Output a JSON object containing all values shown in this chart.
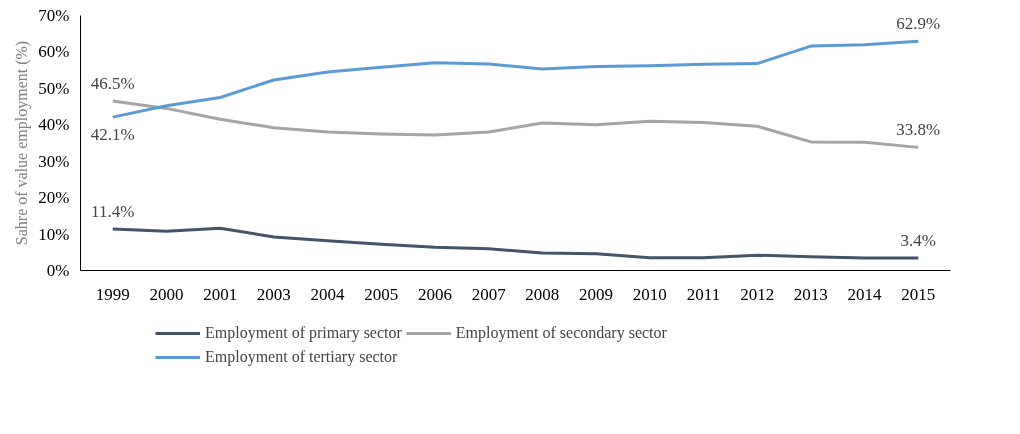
{
  "chart_data": {
    "type": "line",
    "ylabel": "Sahre of value employment (%)",
    "categories": [
      "1999",
      "2000",
      "2001",
      "2003",
      "2004",
      "2005",
      "2006",
      "2007",
      "2008",
      "2009",
      "2010",
      "2011",
      "2012",
      "2013",
      "2014",
      "2015"
    ],
    "series": [
      {
        "name": "Employment of primary sector",
        "color": "#44546a",
        "values": [
          11.4,
          10.8,
          11.6,
          9.2,
          8.2,
          7.2,
          6.4,
          6.0,
          4.8,
          4.6,
          3.5,
          3.5,
          4.2,
          3.8,
          3.4,
          3.4
        ],
        "value_labels": [
          "11.4%",
          null,
          null,
          null,
          null,
          null,
          null,
          null,
          null,
          null,
          null,
          null,
          null,
          null,
          null,
          "3.4%"
        ]
      },
      {
        "name": "Employment of secondary sector",
        "color": "#a5a5a5",
        "values": [
          46.5,
          44.5,
          41.5,
          39.2,
          38.0,
          37.5,
          37.2,
          38.0,
          40.5,
          40.0,
          41.0,
          40.6,
          39.6,
          35.3,
          35.2,
          33.8
        ],
        "value_labels": [
          "46.5%",
          null,
          null,
          null,
          null,
          null,
          null,
          null,
          null,
          null,
          null,
          null,
          null,
          null,
          null,
          "33.8%"
        ]
      },
      {
        "name": "Employment of tertiary sector",
        "color": "#5b9bd5",
        "values": [
          42.1,
          45.2,
          47.5,
          52.3,
          54.5,
          55.8,
          57.0,
          56.7,
          55.3,
          56.0,
          56.2,
          56.6,
          56.8,
          61.6,
          62.0,
          62.9
        ],
        "value_labels": [
          "42.1%",
          null,
          null,
          null,
          null,
          null,
          null,
          null,
          null,
          null,
          null,
          null,
          null,
          null,
          null,
          "62.9%"
        ]
      }
    ],
    "ylim": [
      0,
      70
    ],
    "yticks": [
      {
        "value": 0,
        "label": "0%"
      },
      {
        "value": 10,
        "label": "10%"
      },
      {
        "value": 20,
        "label": "20%"
      },
      {
        "value": 30,
        "label": "30%"
      },
      {
        "value": 40,
        "label": "40%"
      },
      {
        "value": 50,
        "label": "50%"
      },
      {
        "value": 60,
        "label": "60%"
      },
      {
        "value": 70,
        "label": "70%"
      }
    ],
    "grid": false,
    "legend": "bottom",
    "marker": "none",
    "line_style": "solid"
  }
}
